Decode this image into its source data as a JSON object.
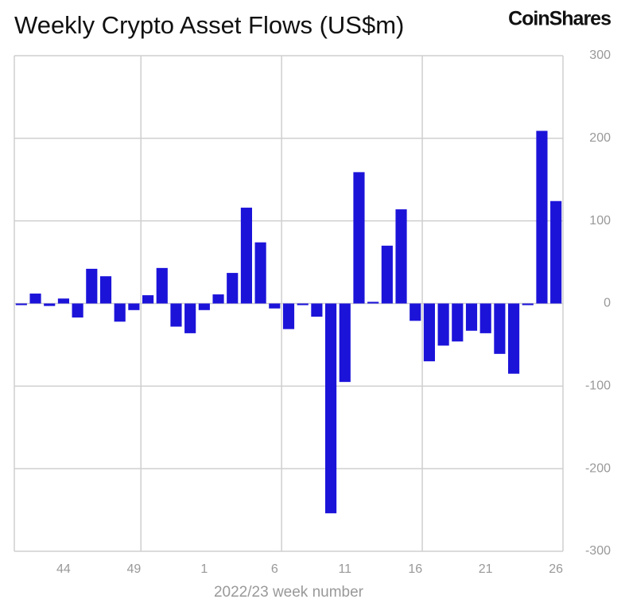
{
  "chart_data": {
    "type": "bar",
    "title": "Weekly Crypto Asset Flows (US$m)",
    "brand": "CoinShares",
    "x_label": "2022/23 week number",
    "categories": [
      null,
      null,
      null,
      "44",
      null,
      null,
      null,
      null,
      "49",
      null,
      null,
      null,
      null,
      "1",
      null,
      null,
      null,
      null,
      "6",
      null,
      null,
      null,
      null,
      "11",
      null,
      null,
      null,
      null,
      "16",
      null,
      null,
      null,
      null,
      "21",
      null,
      null,
      null,
      null,
      "26"
    ],
    "values": [
      -2,
      12,
      -3,
      6,
      -17,
      42,
      33,
      -22,
      -8,
      10,
      43,
      -28,
      -36,
      -8,
      11,
      37,
      116,
      74,
      -6,
      -31,
      -2,
      -16,
      -254,
      -95,
      159,
      2,
      70,
      114,
      -21,
      -70,
      -51,
      -46,
      -33,
      -36,
      -61,
      -85,
      -2,
      209,
      124
    ],
    "color": "#1c13d9",
    "ylim": [
      -300,
      300
    ],
    "yticks": [
      -300,
      -200,
      -100,
      0,
      100,
      200,
      300
    ],
    "grid": true
  }
}
